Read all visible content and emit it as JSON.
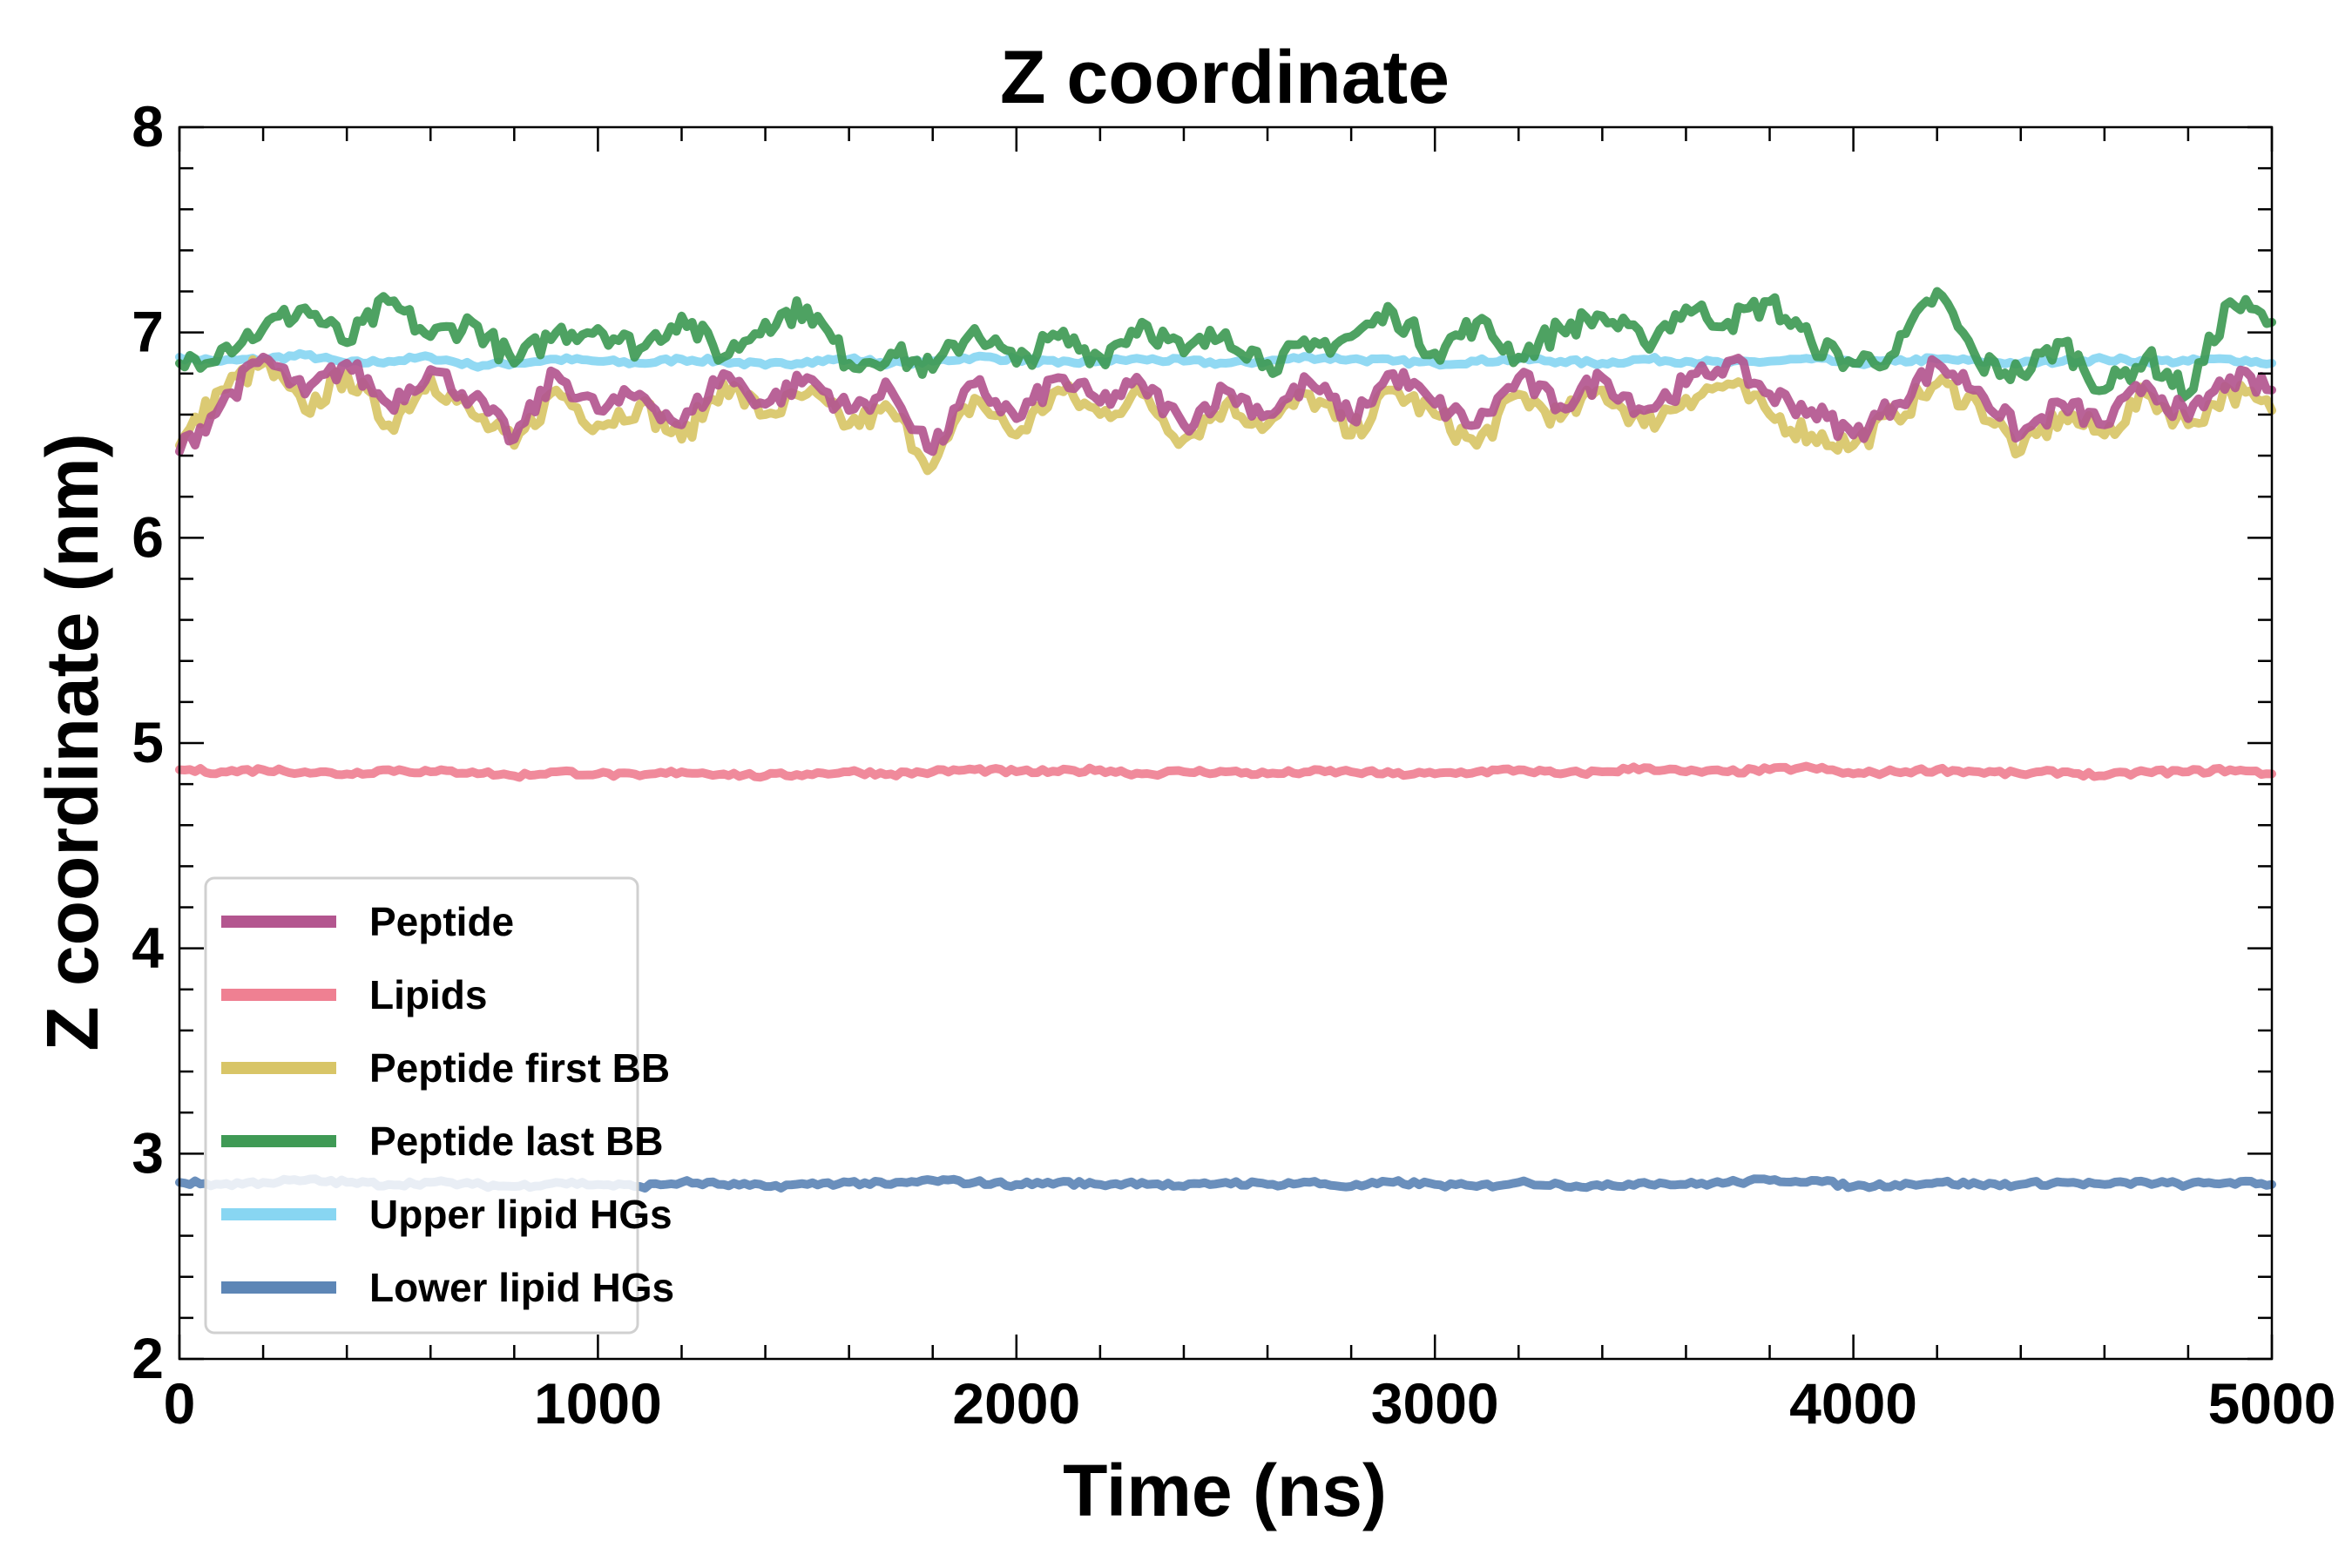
{
  "chart_data": {
    "type": "line",
    "title": "Z coordinate",
    "xlabel": "Time (ns)",
    "ylabel": "Z coordinate (nm)",
    "xlim": [
      0,
      5000
    ],
    "ylim": [
      2,
      8
    ],
    "xticks": [
      0,
      1000,
      2000,
      3000,
      4000,
      5000
    ],
    "yticks": [
      2,
      3,
      4,
      5,
      6,
      7,
      8
    ],
    "grid": false,
    "legend_position": "lower-left",
    "x": [
      0,
      100,
      200,
      300,
      400,
      500,
      600,
      700,
      800,
      900,
      1000,
      1100,
      1200,
      1300,
      1400,
      1500,
      1600,
      1700,
      1800,
      1900,
      2000,
      2100,
      2200,
      2300,
      2400,
      2500,
      2600,
      2700,
      2800,
      2900,
      3000,
      3100,
      3200,
      3300,
      3400,
      3500,
      3600,
      3700,
      3800,
      3900,
      4000,
      4100,
      4200,
      4300,
      4400,
      4500,
      4600,
      4700,
      4800,
      4900,
      5000
    ],
    "series": [
      {
        "name": "Upper lipid HGs",
        "color": "#88d6f2",
        "values": [
          6.88,
          6.86,
          6.87,
          6.89,
          6.85,
          6.86,
          6.88,
          6.84,
          6.85,
          6.87,
          6.86,
          6.85,
          6.87,
          6.86,
          6.84,
          6.86,
          6.87,
          6.85,
          6.86,
          6.88,
          6.87,
          6.85,
          6.86,
          6.87,
          6.86,
          6.85,
          6.86,
          6.88,
          6.87,
          6.86,
          6.85,
          6.86,
          6.87,
          6.86,
          6.85,
          6.87,
          6.86,
          6.85,
          6.86,
          6.87,
          6.85,
          6.86,
          6.87,
          6.86,
          6.85,
          6.86,
          6.87,
          6.86,
          6.86,
          6.87,
          6.85
        ]
      },
      {
        "name": "Peptide first BB",
        "color": "#d8c567",
        "values": [
          6.45,
          6.72,
          6.85,
          6.62,
          6.8,
          6.55,
          6.78,
          6.6,
          6.45,
          6.72,
          6.55,
          6.65,
          6.48,
          6.75,
          6.6,
          6.7,
          6.55,
          6.62,
          6.35,
          6.68,
          6.5,
          6.72,
          6.6,
          6.7,
          6.48,
          6.65,
          6.55,
          6.7,
          6.5,
          6.72,
          6.6,
          6.45,
          6.7,
          6.58,
          6.72,
          6.55,
          6.68,
          6.75,
          6.6,
          6.5,
          6.45,
          6.6,
          6.75,
          6.65,
          6.42,
          6.6,
          6.5,
          6.7,
          6.55,
          6.72,
          6.62
        ]
      },
      {
        "name": "Peptide last BB",
        "color": "#3f9a55",
        "values": [
          6.85,
          6.92,
          7.02,
          7.12,
          6.95,
          7.15,
          6.98,
          7.05,
          6.85,
          7.0,
          7.02,
          6.92,
          7.08,
          6.88,
          7.05,
          7.12,
          6.85,
          6.9,
          6.82,
          7.02,
          6.85,
          6.98,
          6.88,
          7.05,
          6.9,
          7.0,
          6.85,
          6.92,
          6.98,
          7.1,
          6.9,
          7.05,
          6.88,
          7.02,
          7.08,
          6.95,
          7.12,
          7.05,
          7.15,
          6.95,
          6.85,
          6.9,
          7.2,
          6.85,
          6.8,
          6.95,
          6.72,
          6.88,
          6.7,
          7.15,
          7.05
        ]
      },
      {
        "name": "Peptide",
        "color": "#b3568f",
        "values": [
          6.42,
          6.65,
          6.88,
          6.7,
          6.85,
          6.65,
          6.82,
          6.68,
          6.48,
          6.8,
          6.62,
          6.7,
          6.55,
          6.8,
          6.65,
          6.78,
          6.62,
          6.72,
          6.42,
          6.75,
          6.58,
          6.78,
          6.66,
          6.75,
          6.55,
          6.72,
          6.6,
          6.76,
          6.58,
          6.8,
          6.65,
          6.55,
          6.78,
          6.64,
          6.78,
          6.62,
          6.75,
          6.86,
          6.7,
          6.62,
          6.5,
          6.65,
          6.85,
          6.72,
          6.5,
          6.65,
          6.55,
          6.75,
          6.58,
          6.78,
          6.72
        ]
      },
      {
        "name": "Lipids",
        "color": "#ef8092",
        "values": [
          4.87,
          4.86,
          4.87,
          4.86,
          4.85,
          4.87,
          4.86,
          4.86,
          4.84,
          4.86,
          4.85,
          4.84,
          4.86,
          4.85,
          4.84,
          4.85,
          4.86,
          4.85,
          4.86,
          4.87,
          4.86,
          4.86,
          4.87,
          4.85,
          4.86,
          4.86,
          4.85,
          4.86,
          4.86,
          4.85,
          4.85,
          4.86,
          4.87,
          4.85,
          4.86,
          4.88,
          4.86,
          4.86,
          4.87,
          4.88,
          4.85,
          4.86,
          4.87,
          4.86,
          4.85,
          4.86,
          4.84,
          4.86,
          4.86,
          4.87,
          4.85
        ]
      },
      {
        "name": "Lower lipid HGs",
        "color": "#5d86b6",
        "values": [
          2.86,
          2.85,
          2.86,
          2.87,
          2.86,
          2.85,
          2.86,
          2.85,
          2.84,
          2.86,
          2.85,
          2.84,
          2.86,
          2.85,
          2.84,
          2.85,
          2.86,
          2.85,
          2.87,
          2.86,
          2.85,
          2.86,
          2.85,
          2.86,
          2.84,
          2.86,
          2.85,
          2.86,
          2.84,
          2.86,
          2.85,
          2.84,
          2.86,
          2.85,
          2.84,
          2.86,
          2.85,
          2.86,
          2.87,
          2.87,
          2.84,
          2.85,
          2.86,
          2.85,
          2.85,
          2.86,
          2.85,
          2.86,
          2.85,
          2.86,
          2.85
        ]
      }
    ],
    "legend_order": [
      "Peptide",
      "Lipids",
      "Peptide first BB",
      "Peptide last BB",
      "Upper lipid HGs",
      "Lower lipid HGs"
    ]
  }
}
